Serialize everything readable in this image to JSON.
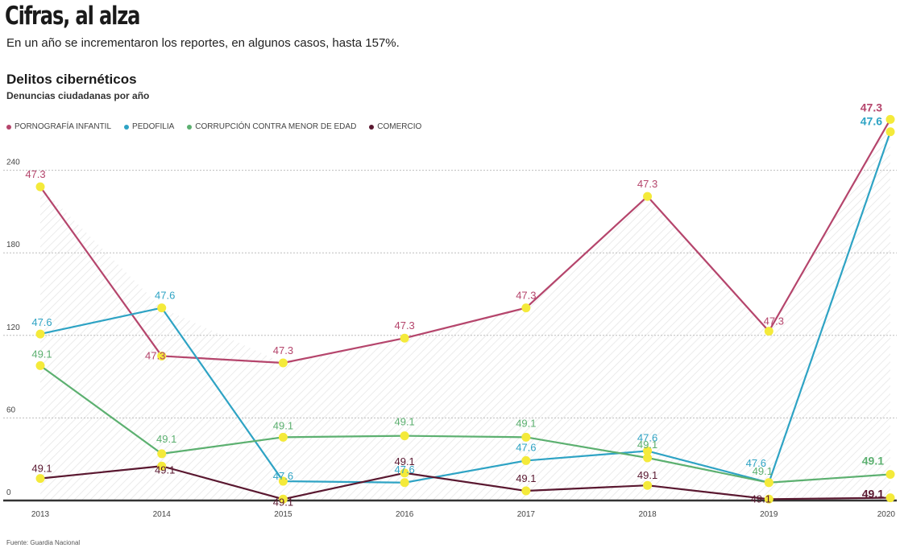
{
  "header": {
    "title": "Cifras, al alza",
    "subtitle": "En un año se incrementaron los reportes, en algunos casos, hasta 157%.",
    "section_title": "Delitos cibernéticos",
    "section_subtitle": "Denuncias ciudadanas por año"
  },
  "source": "Fuente: Guardia Nacional",
  "colors": {
    "pornografia": "#b5456c",
    "pedofilia": "#2ea3c4",
    "corrupcion": "#5cb070",
    "comercio": "#5a1830",
    "marker": "#f4ea3a",
    "grid": "#bdbdbd",
    "hatch": "#e3e3e3",
    "axis": "#333333"
  },
  "chart_data": {
    "type": "line",
    "x": [
      "2013",
      "2014",
      "2015",
      "2016",
      "2017",
      "2018",
      "2019",
      "2020"
    ],
    "yticks": [
      "0",
      "60",
      "120",
      "180",
      "240"
    ],
    "ylim": [
      0,
      282
    ],
    "grid": true,
    "legend_position": "top-left",
    "series": [
      {
        "name": "PORNOGRAFÍA INFANTIL",
        "color_key": "pornografia",
        "values": [
          228,
          105,
          100,
          118,
          140,
          221,
          123,
          277
        ],
        "labels": [
          "47.3",
          "47.3",
          "47.3",
          "47.3",
          "47.3",
          "47.3",
          "47.3",
          "47.3"
        ]
      },
      {
        "name": "PEDOFILIA",
        "color_key": "pedofilia",
        "values": [
          121,
          140,
          14,
          13,
          29,
          36,
          13,
          268
        ],
        "labels": [
          "47.6",
          "47.6",
          "47.6",
          "47.6",
          "47.6",
          "47.6",
          "47.6",
          "47.6"
        ]
      },
      {
        "name": "CORRUPCIÓN CONTRA MENOR DE EDAD",
        "color_key": "corrupcion",
        "values": [
          98,
          34,
          46,
          47,
          46,
          31,
          13,
          19
        ],
        "labels": [
          "49.1",
          "49.1",
          "49.1",
          "49.1",
          "49.1",
          "49.1",
          "49.1",
          "49.1"
        ]
      },
      {
        "name": "COMERCIO",
        "color_key": "comercio",
        "values": [
          16,
          25,
          1,
          20,
          7,
          11,
          1,
          2
        ],
        "labels": [
          "49.1",
          "49.1",
          "49.1",
          "49.1",
          "49.1",
          "49.1",
          "49.1",
          "49.1"
        ]
      }
    ]
  }
}
